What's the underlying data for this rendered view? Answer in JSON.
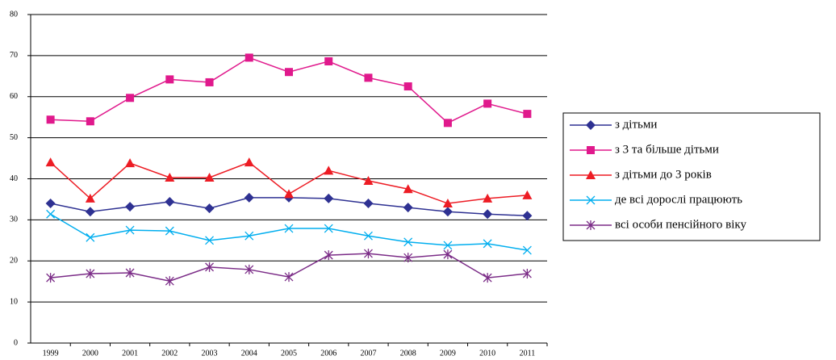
{
  "chart_data": {
    "type": "line",
    "categories": [
      "1999",
      "2000",
      "2001",
      "2002",
      "2003",
      "2004",
      "2005",
      "2006",
      "2007",
      "2008",
      "2009",
      "2010",
      "2011"
    ],
    "series": [
      {
        "name": "з дітьми",
        "color": "#2e3192",
        "marker": "diamond",
        "values": [
          34.0,
          32.0,
          33.2,
          34.4,
          32.8,
          35.4,
          35.4,
          35.2,
          34.0,
          33.0,
          32.0,
          31.4,
          31.0
        ]
      },
      {
        "name": "з 3 та більше дітьми",
        "color": "#e0198c",
        "marker": "square",
        "values": [
          54.4,
          54.0,
          59.7,
          64.2,
          63.5,
          69.5,
          66.0,
          68.6,
          64.6,
          62.5,
          53.6,
          58.3,
          55.8
        ]
      },
      {
        "name": "з дітьми до 3 років",
        "color": "#ed1c24",
        "marker": "triangle",
        "values": [
          44.0,
          35.2,
          43.8,
          40.3,
          40.3,
          44.0,
          36.3,
          42.0,
          39.5,
          37.5,
          34.0,
          35.2,
          36.0
        ]
      },
      {
        "name": "де всі дорослі працюють",
        "color": "#00aeef",
        "marker": "x",
        "values": [
          31.4,
          25.7,
          27.5,
          27.3,
          25.0,
          26.1,
          27.9,
          27.9,
          26.1,
          24.6,
          23.8,
          24.2,
          22.6
        ]
      },
      {
        "name": "всі особи пенсійного віку",
        "color": "#7b2c87",
        "marker": "star",
        "values": [
          15.9,
          16.9,
          17.1,
          15.1,
          18.5,
          17.9,
          16.1,
          21.4,
          21.8,
          20.8,
          21.6,
          15.9,
          16.9
        ]
      }
    ],
    "ylim": [
      0,
      80
    ],
    "yticks": [
      0,
      10,
      20,
      30,
      40,
      50,
      60,
      70,
      80
    ],
    "grid": true,
    "legend": "right"
  }
}
